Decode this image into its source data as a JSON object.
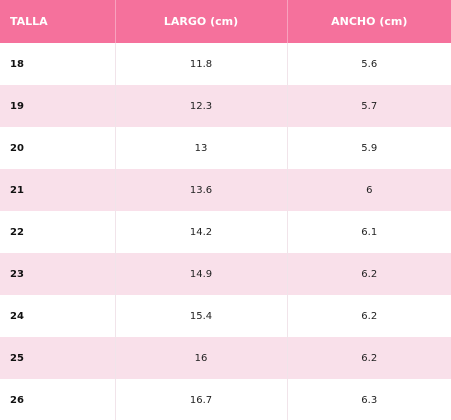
{
  "table": {
    "headers": [
      "TALLA",
      "LARGO (cm)",
      "ANCHO (cm)"
    ],
    "rows": [
      [
        "18",
        "11.8",
        "5.6"
      ],
      [
        "19",
        "12.3",
        "5.7"
      ],
      [
        "20",
        "13",
        "5.9"
      ],
      [
        "21",
        "13.6",
        "6"
      ],
      [
        "22",
        "14.2",
        "6.1"
      ],
      [
        "23",
        "14.9",
        "6.2"
      ],
      [
        "24",
        "15.4",
        "6.2"
      ],
      [
        "25",
        "16",
        "6.2"
      ],
      [
        "26",
        "16.7",
        "6.3"
      ]
    ]
  },
  "colors": {
    "header_bg": "#f5719c",
    "alt_row_bg": "#f9e0ea"
  }
}
